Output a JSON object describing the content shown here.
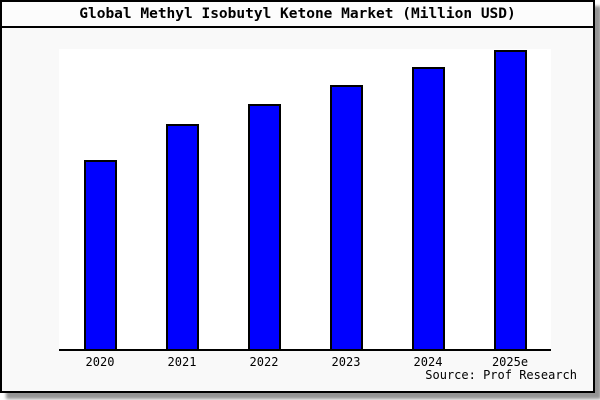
{
  "window": {
    "background_color": "#f9f9f9",
    "plot_background_color": "#ffffff",
    "border_color": "#000000",
    "shadow_color": "#6b6b6b"
  },
  "header": {
    "title": "Global Methyl Isobutyl Ketone Market (Million USD)"
  },
  "chart_data": {
    "type": "bar",
    "title": "Global Methyl Isobutyl Ketone Market (Million USD)",
    "categories": [
      "2020",
      "2021",
      "2022",
      "2023",
      "2024",
      "2025e"
    ],
    "values": [
      63,
      75,
      81.7,
      88,
      94,
      99.7
    ],
    "values_note": "y-axis has no tick labels; values are bar heights as percent of plot height (2025e = tallest)",
    "xlabel": "",
    "ylabel": "",
    "ylim": [
      0,
      100
    ],
    "grid": false,
    "legend_position": "none",
    "bar_color": "#0000ff",
    "bar_border_color": "#000000"
  },
  "footer": {
    "source_label": "Source: Prof Research"
  }
}
